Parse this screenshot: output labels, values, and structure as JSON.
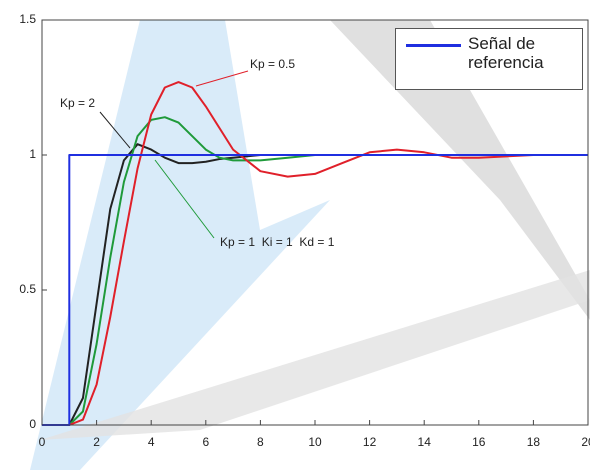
{
  "chart_data": {
    "type": "line",
    "series": [
      {
        "name": "Señal de referencia",
        "color": "#1f2fe0",
        "x": [
          0,
          1,
          1,
          20
        ],
        "values": [
          0,
          0,
          1,
          1
        ]
      },
      {
        "name": null,
        "color": "#222222",
        "x": [
          0,
          1,
          1.5,
          2,
          2.5,
          3,
          3.5,
          4,
          4.5,
          5,
          5.5,
          6,
          6.5,
          7,
          8,
          9,
          10,
          11,
          12,
          13,
          14,
          15,
          16,
          18,
          20
        ],
        "values": [
          0,
          0,
          0.1,
          0.45,
          0.8,
          0.98,
          1.04,
          1.02,
          0.99,
          0.97,
          0.97,
          0.975,
          0.985,
          0.99,
          1,
          1,
          1,
          1,
          1,
          1,
          1,
          1,
          1,
          1,
          1
        ]
      },
      {
        "name": null,
        "color": "#1f9a3a",
        "x": [
          0,
          1,
          1.5,
          2,
          2.5,
          3,
          3.5,
          4,
          4.5,
          5,
          5.5,
          6,
          6.5,
          7,
          8,
          9,
          10,
          11,
          12,
          13,
          14,
          15,
          16,
          18,
          20
        ],
        "values": [
          0,
          0,
          0.05,
          0.3,
          0.62,
          0.9,
          1.07,
          1.13,
          1.14,
          1.12,
          1.07,
          1.02,
          0.99,
          0.98,
          0.98,
          0.99,
          1,
          1,
          1,
          1,
          1,
          1,
          1,
          1,
          1
        ]
      },
      {
        "name": null,
        "color": "#e0202a",
        "x": [
          0,
          1,
          1.5,
          2,
          2.5,
          3,
          3.5,
          4,
          4.5,
          5,
          5.5,
          6,
          6.5,
          7,
          8,
          9,
          10,
          11,
          12,
          13,
          14,
          15,
          16,
          18,
          20
        ],
        "values": [
          0,
          0,
          0.02,
          0.15,
          0.4,
          0.68,
          0.95,
          1.15,
          1.25,
          1.27,
          1.25,
          1.18,
          1.1,
          1.02,
          0.94,
          0.92,
          0.93,
          0.97,
          1.01,
          1.02,
          1.01,
          0.99,
          0.99,
          1,
          1
        ]
      }
    ],
    "annotations": [
      "Kp = 0.5",
      "Kp = 2",
      "Kp = 1  Ki = 1  Kd = 1"
    ],
    "xlim": [
      0,
      20
    ],
    "xticks": [
      0,
      2,
      4,
      6,
      8,
      10,
      12,
      14,
      16,
      18,
      20
    ],
    "ylim": [
      0,
      1.5
    ],
    "yticks": [
      0,
      0.5,
      1,
      1.5
    ]
  }
}
